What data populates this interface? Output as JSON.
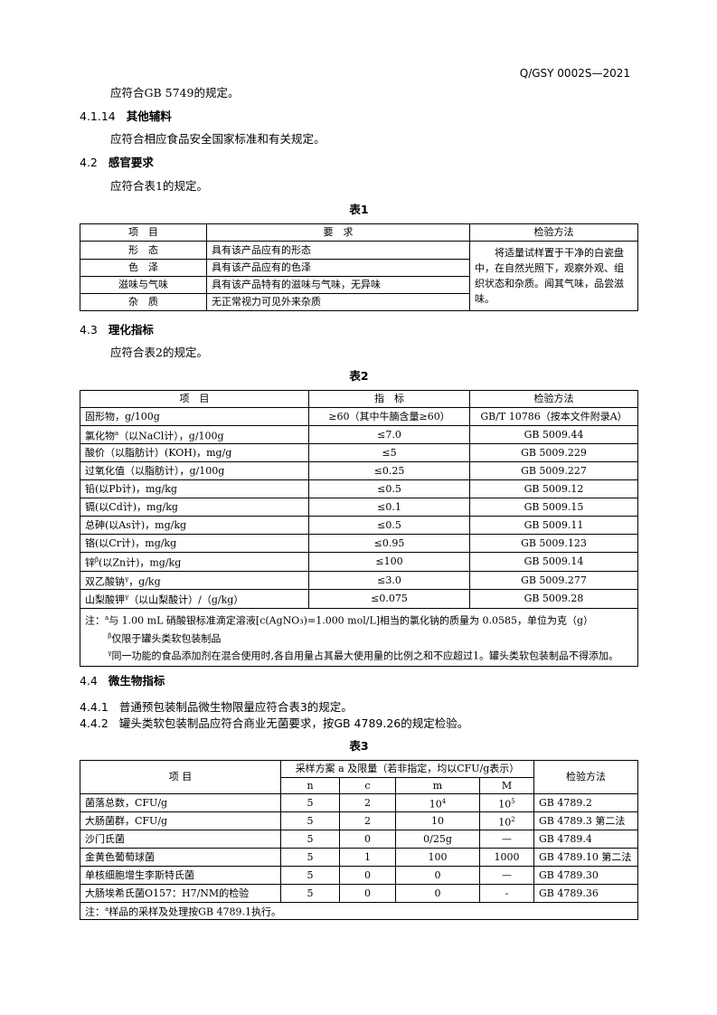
{
  "header_code": "Q/GSY 0002S—2021",
  "p1": "应符合GB 5749的规定。",
  "s4114": {
    "num": "4.1.14",
    "title": "其他辅料"
  },
  "p2": "应符合相应食品安全国家标准和有关规定。",
  "s42": {
    "num": "4.2",
    "title": "感官要求"
  },
  "p3": "应符合表1的规定。",
  "table1": {
    "caption": "表1",
    "headers": [
      "项　目",
      "要　求",
      "检验方法"
    ],
    "rows": [
      [
        "形　态",
        "具有该产品应有的形态"
      ],
      [
        "色　泽",
        "具有该产品应有的色泽"
      ],
      [
        "滋味与气味",
        "具有该产品特有的滋味与气味，无异味"
      ],
      [
        "杂　质",
        "无正常视力可见外来杂质"
      ]
    ],
    "method": "将适量试样置于干净的白瓷盘中，在自然光照下，观察外观、组织状态和杂质。闻其气味，品尝滋味。"
  },
  "s43": {
    "num": "4.3",
    "title": "理化指标"
  },
  "p4": "应符合表2的规定。",
  "table2": {
    "caption": "表2",
    "headers": [
      "项　目",
      "指　标",
      "检验方法"
    ],
    "rows": [
      {
        "item": "固形物，g/100g",
        "sup": "",
        "item2": "",
        "value": "≥60（其中牛腩含量≥60）",
        "method": "GB/T 10786（按本文件附录A）"
      },
      {
        "item": "氯化物",
        "sup": "a",
        "item2": "（以NaCl计），g/100g",
        "value": "≤7.0",
        "method": "GB 5009.44"
      },
      {
        "item": "酸价（以脂肪计）(KOH)，mg/g",
        "sup": "",
        "item2": "",
        "value": "≤5",
        "method": "GB 5009.229"
      },
      {
        "item": "过氧化值（以脂肪计），g/100g",
        "sup": "",
        "item2": "",
        "value": "≤0.25",
        "method": "GB 5009.227"
      },
      {
        "item": "铅(以Pb计)，mg/kg",
        "sup": "",
        "item2": "",
        "value": "≤0.5",
        "method": "GB 5009.12"
      },
      {
        "item": "镉(以Cd计)，mg/kg",
        "sup": "",
        "item2": "",
        "value": "≤0.1",
        "method": "GB 5009.15"
      },
      {
        "item": "总砷(以As计)，mg/kg",
        "sup": "",
        "item2": "",
        "value": "≤0.5",
        "method": "GB 5009.11"
      },
      {
        "item": "铬(以Cr计)，mg/kg",
        "sup": "",
        "item2": "",
        "value": "≤0.95",
        "method": "GB 5009.123"
      },
      {
        "item": "锌",
        "sup": "β",
        "item2": "(以Zn计)，mg/kg",
        "value": "≤100",
        "method": "GB 5009.14"
      },
      {
        "item": "双乙酸钠",
        "sup": "γ",
        "item2": "，g/kg",
        "value": "≤3.0",
        "method": "GB 5009.277"
      },
      {
        "item": "山梨酸钾",
        "sup": "γ",
        "item2": "（以山梨酸计）/（g/kg）",
        "value": "≤0.075",
        "method": "GB 5009.28"
      }
    ],
    "notes": {
      "prefix": "注：",
      "n1_sup": "a",
      "n1": "与 1.00 mL 硝酸银标准滴定溶液[c(AgNO₃)=1.000 mol/L]相当的氯化钠的质量为 0.0585，单位为克（g）",
      "n2_sup": "β",
      "n2": "仅限于罐头类软包装制品",
      "n3_sup": "γ",
      "n3": "同一功能的食品添加剂在混合使用时,各自用量占其最大使用量的比例之和不应超过1。罐头类软包装制品不得添加。"
    }
  },
  "s44": {
    "num": "4.4",
    "title": "微生物指标"
  },
  "s441": {
    "num": "4.4.1",
    "text": "普通预包装制品微生物限量应符合表3的规定。"
  },
  "s442": {
    "num": "4.4.2",
    "text": "罐头类软包装制品应符合商业无菌要求，按GB 4789.26的规定检验。"
  },
  "table3": {
    "caption": "表3",
    "h_item": "项 目",
    "h_plan": "采样方案 a 及限量（若非指定，均以CFU/g表示）",
    "h_method": "检验方法",
    "sub": [
      "n",
      "c",
      "m",
      "M"
    ],
    "rows": [
      {
        "item": "菌落总数，CFU/g",
        "n": "5",
        "c": "2",
        "m": "10",
        "m_sup": "4",
        "M": "10",
        "M_sup": "5",
        "method": "GB 4789.2"
      },
      {
        "item": "大肠菌群，CFU/g",
        "n": "5",
        "c": "2",
        "m": "10",
        "m_sup": "",
        "M": "10",
        "M_sup": "2",
        "method": "GB 4789.3 第二法"
      },
      {
        "item": "沙门氏菌",
        "n": "5",
        "c": "0",
        "m": "0/25g",
        "m_sup": "",
        "M": "—",
        "M_sup": "",
        "method": "GB 4789.4"
      },
      {
        "item": "金黄色葡萄球菌",
        "n": "5",
        "c": "1",
        "m": "100",
        "m_sup": "",
        "M": "1000",
        "M_sup": "",
        "method": "GB 4789.10 第二法"
      },
      {
        "item": "单核细胞增生李斯特氏菌",
        "n": "5",
        "c": "0",
        "m": "0",
        "m_sup": "",
        "M": "—",
        "M_sup": "",
        "method": "GB 4789.30"
      },
      {
        "item": "大肠埃希氏菌O157：H7/NM的检验",
        "n": "5",
        "c": "0",
        "m": "0",
        "m_sup": "",
        "M": "-",
        "M_sup": "",
        "method": "GB 4789.36"
      }
    ],
    "note_prefix": "注：",
    "note_sup": "a",
    "note": "样品的采样及处理按GB 4789.1执行。"
  }
}
